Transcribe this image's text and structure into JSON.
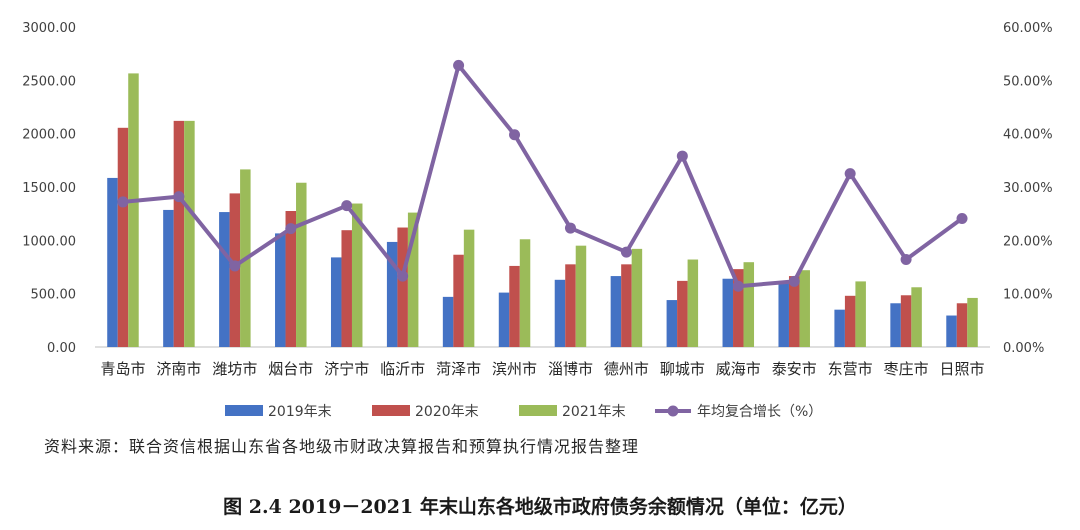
{
  "chart_data": {
    "type": "bar",
    "categories": [
      "青岛市",
      "济南市",
      "潍坊市",
      "烟台市",
      "济宁市",
      "临沂市",
      "菏泽市",
      "滨州市",
      "淄博市",
      "德州市",
      "聊城市",
      "威海市",
      "泰安市",
      "东营市",
      "枣庄市",
      "日照市"
    ],
    "series": [
      {
        "name": "2019年末",
        "kind": "bar",
        "axis": "left",
        "color": "#4472C4",
        "values": [
          1585,
          1285,
          1265,
          1065,
          840,
          985,
          470,
          510,
          630,
          665,
          440,
          640,
          610,
          350,
          410,
          295
        ]
      },
      {
        "name": "2020年末",
        "kind": "bar",
        "axis": "left",
        "color": "#C0504D",
        "values": [
          2055,
          2120,
          1440,
          1275,
          1095,
          1120,
          865,
          760,
          775,
          775,
          620,
          730,
          665,
          480,
          485,
          410
        ]
      },
      {
        "name": "2021年末",
        "kind": "bar",
        "axis": "left",
        "color": "#9BBB59",
        "values": [
          2565,
          2120,
          1665,
          1540,
          1345,
          1260,
          1100,
          1010,
          950,
          920,
          820,
          795,
          720,
          615,
          560,
          460
        ]
      },
      {
        "name": "年均复合增长（%）",
        "kind": "line",
        "axis": "right",
        "color": "#8064A2",
        "values": [
          27.2,
          28.2,
          15.2,
          22.2,
          26.5,
          13.3,
          52.8,
          39.8,
          22.3,
          17.8,
          35.8,
          11.4,
          12.3,
          32.5,
          16.4,
          24.1
        ]
      }
    ],
    "y_left": {
      "min": 0,
      "max": 3000,
      "step": 500,
      "tick_labels": [
        "0.00",
        "500.00",
        "1000.00",
        "1500.00",
        "2000.00",
        "2500.00",
        "3000.00"
      ]
    },
    "y_right": {
      "min": 0,
      "max": 60,
      "step": 10,
      "tick_labels": [
        "0.00%",
        "10.00%",
        "20.00%",
        "30.00%",
        "40.00%",
        "50.00%",
        "60.00%"
      ]
    },
    "grid": false,
    "legend_placement": "bottom"
  },
  "source": "资料来源：联合资信根据山东省各地级市财政决算报告和预算执行情况报告整理",
  "caption": "图 2.4    2019－2021 年末山东各地级市政府债务余额情况（单位：亿元）"
}
